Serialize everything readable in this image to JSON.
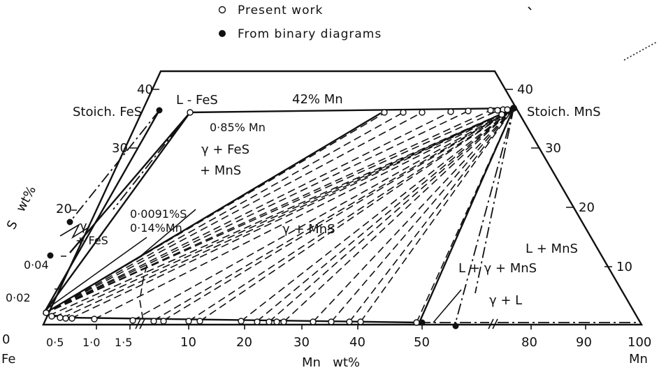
{
  "legend": {
    "present_work": "Present work",
    "binary": "From binary diagrams"
  },
  "corners": {
    "fe": "Fe",
    "mn": "Mn"
  },
  "axes": {
    "x_title": "Mn   wt%",
    "s_title": "S   wt%",
    "x_ticks_left": [
      "0",
      "0·5",
      "1·0",
      "1·5"
    ],
    "x_ticks_right": [
      "10",
      "20",
      "30",
      "40",
      "50",
      "80",
      "90",
      "100"
    ],
    "s_ticks_left": [
      "0·02",
      "0·04",
      "20",
      "30",
      "40"
    ],
    "s_ticks_right": [
      "10",
      "20",
      "30",
      "40"
    ]
  },
  "labels": {
    "stoich_fes": "Stoich. FeS",
    "stoich_mns": "Stoich. MnS",
    "l_fes": "L - FeS",
    "mn42": "42% Mn",
    "mn085": "0·85% Mn",
    "g_fes_mns_1": "γ + FeS",
    "g_fes_mns_2": "+ MnS",
    "s0091": "0·0091%S",
    "mn014": "0·14%Mn",
    "g_mns": "γ + MnS",
    "g_fes_1": "γ",
    "g_fes_2": "+ FeS",
    "l_mns": "L + MnS",
    "l_g_mns": "L + γ + MnS",
    "g_l": "γ + L"
  }
}
